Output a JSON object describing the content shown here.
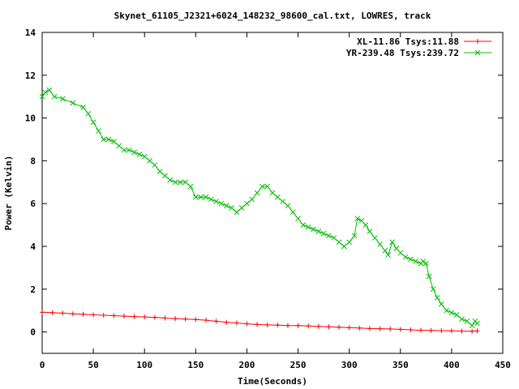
{
  "chart_data": {
    "type": "scatter",
    "title": "Skynet_61105_J2321+6024_148232_98600_cal.txt, LOWRES, track",
    "xlabel": "Time(Seconds)",
    "ylabel": "Power (Kelvin)",
    "xlim": [
      0,
      450
    ],
    "ylim": [
      -1,
      14
    ],
    "xticks": [
      0,
      50,
      100,
      150,
      200,
      250,
      300,
      350,
      400,
      450
    ],
    "yticks": [
      0,
      2,
      4,
      6,
      8,
      10,
      12,
      14
    ],
    "legend_position": "top-right",
    "series": [
      {
        "name": "XL-11.86 Tsys:11.88",
        "color": "#ff0000",
        "marker": "plus",
        "x": [
          0,
          10,
          20,
          30,
          40,
          50,
          60,
          70,
          80,
          90,
          100,
          110,
          120,
          130,
          140,
          150,
          160,
          170,
          180,
          190,
          200,
          210,
          220,
          230,
          240,
          250,
          260,
          270,
          280,
          290,
          300,
          310,
          320,
          330,
          340,
          350,
          360,
          370,
          380,
          390,
          400,
          410,
          420,
          425
        ],
        "y": [
          0.92,
          0.9,
          0.88,
          0.85,
          0.83,
          0.8,
          0.78,
          0.76,
          0.74,
          0.72,
          0.7,
          0.68,
          0.65,
          0.62,
          0.6,
          0.58,
          0.55,
          0.5,
          0.45,
          0.42,
          0.38,
          0.35,
          0.33,
          0.32,
          0.3,
          0.3,
          0.28,
          0.26,
          0.24,
          0.22,
          0.2,
          0.18,
          0.16,
          0.15,
          0.14,
          0.12,
          0.1,
          0.08,
          0.07,
          0.06,
          0.05,
          0.04,
          0.03,
          0.05
        ]
      },
      {
        "name": "YR-239.48 Tsys:239.72",
        "color": "#00c000",
        "marker": "cross",
        "x": [
          0,
          3,
          7,
          12,
          20,
          30,
          40,
          45,
          50,
          55,
          60,
          65,
          70,
          75,
          80,
          85,
          90,
          95,
          100,
          105,
          110,
          115,
          120,
          125,
          130,
          135,
          140,
          145,
          150,
          155,
          160,
          165,
          170,
          175,
          180,
          185,
          190,
          195,
          200,
          205,
          210,
          215,
          220,
          225,
          230,
          235,
          240,
          245,
          250,
          255,
          260,
          265,
          270,
          275,
          280,
          285,
          290,
          295,
          300,
          305,
          308,
          312,
          316,
          320,
          325,
          330,
          335,
          338,
          342,
          346,
          350,
          355,
          360,
          365,
          370,
          372,
          375,
          378,
          382,
          386,
          390,
          395,
          400,
          405,
          410,
          415,
          420,
          423,
          425
        ],
        "y": [
          11.0,
          11.2,
          11.3,
          11.0,
          10.9,
          10.7,
          10.5,
          10.2,
          9.8,
          9.4,
          9.0,
          9.0,
          8.9,
          8.7,
          8.5,
          8.5,
          8.4,
          8.3,
          8.2,
          8.0,
          7.8,
          7.5,
          7.3,
          7.1,
          7.0,
          7.0,
          7.0,
          6.8,
          6.3,
          6.3,
          6.3,
          6.2,
          6.1,
          6.0,
          5.9,
          5.8,
          5.6,
          5.8,
          6.0,
          6.2,
          6.5,
          6.8,
          6.8,
          6.5,
          6.3,
          6.1,
          5.9,
          5.6,
          5.3,
          5.0,
          4.9,
          4.8,
          4.7,
          4.6,
          4.5,
          4.4,
          4.2,
          4.0,
          4.2,
          4.5,
          5.3,
          5.2,
          5.0,
          4.7,
          4.4,
          4.1,
          3.8,
          3.6,
          4.2,
          3.9,
          3.7,
          3.5,
          3.4,
          3.3,
          3.2,
          3.3,
          3.2,
          2.6,
          2.0,
          1.6,
          1.3,
          1.0,
          0.9,
          0.8,
          0.6,
          0.5,
          0.3,
          0.5,
          0.4
        ]
      }
    ]
  }
}
